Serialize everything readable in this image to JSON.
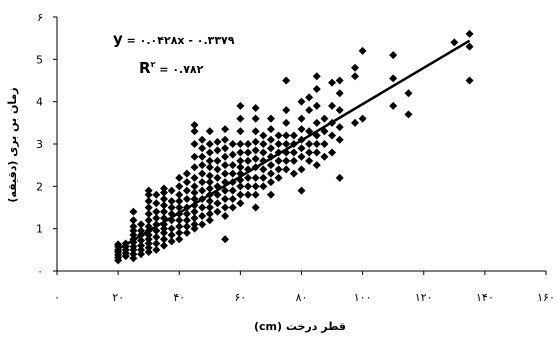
{
  "chart_data": {
    "type": "scatter",
    "title": "",
    "xlabel": "(cm) قطر درخت",
    "ylabel": "زمان بن بری (دقیقه)",
    "xlim": [
      0,
      160
    ],
    "ylim": [
      0,
      6
    ],
    "x_ticks": [
      0,
      20,
      40,
      60,
      80,
      100,
      120,
      140,
      160
    ],
    "y_ticks": [
      0,
      1,
      2,
      3,
      4,
      5,
      6
    ],
    "x_tick_labels": [
      "۰",
      "۲۰",
      "۴۰",
      "۶۰",
      "۸۰",
      "۱۰۰",
      "۱۲۰",
      "۱۴۰",
      "۱۶۰"
    ],
    "y_tick_labels": [
      "۰",
      "1",
      "2",
      "3",
      "4",
      "5",
      "۶"
    ],
    "grid": false,
    "marker": "diamond",
    "marker_color": "#000000",
    "trendline": {
      "slope": 0.0428,
      "intercept": -0.3379,
      "x_range": [
        20,
        135
      ],
      "equation_y": "y",
      "equation_text": " = ۰.۰۴۲۸x - ۰.۳۳۷۹",
      "r2_symbol": "R",
      "r2_sup": "۲",
      "r2_text": " = ۰.۷۸۲"
    },
    "series": [
      {
        "points": [
          [
            20,
            0.25
          ],
          [
            20,
            0.32
          ],
          [
            20,
            0.38
          ],
          [
            20,
            0.45
          ],
          [
            20,
            0.5
          ],
          [
            20,
            0.58
          ],
          [
            20,
            0.63
          ],
          [
            22.5,
            0.35
          ],
          [
            22.5,
            0.42
          ],
          [
            22.5,
            0.5
          ],
          [
            22.5,
            0.58
          ],
          [
            22.5,
            0.65
          ],
          [
            25,
            0.3
          ],
          [
            25,
            0.4
          ],
          [
            25,
            0.5
          ],
          [
            25,
            0.58
          ],
          [
            25,
            0.68
          ],
          [
            25,
            0.75
          ],
          [
            25,
            0.85
          ],
          [
            25,
            0.95
          ],
          [
            25,
            1.05
          ],
          [
            25,
            1.2
          ],
          [
            25,
            1.4
          ],
          [
            27.5,
            0.4
          ],
          [
            27.5,
            0.5
          ],
          [
            27.5,
            0.6
          ],
          [
            27.5,
            0.72
          ],
          [
            27.5,
            0.85
          ],
          [
            27.5,
            0.95
          ],
          [
            27.5,
            1.1
          ],
          [
            30,
            0.45
          ],
          [
            30,
            0.55
          ],
          [
            30,
            0.65
          ],
          [
            30,
            0.75
          ],
          [
            30,
            0.85
          ],
          [
            30,
            0.95
          ],
          [
            30,
            1.05
          ],
          [
            30,
            1.2
          ],
          [
            30,
            1.35
          ],
          [
            30,
            1.5
          ],
          [
            30,
            1.65
          ],
          [
            30,
            1.8
          ],
          [
            30,
            1.9
          ],
          [
            32.5,
            0.5
          ],
          [
            32.5,
            0.65
          ],
          [
            32.5,
            0.8
          ],
          [
            32.5,
            0.95
          ],
          [
            32.5,
            1.1
          ],
          [
            32.5,
            1.25
          ],
          [
            32.5,
            1.4
          ],
          [
            32.5,
            1.6
          ],
          [
            32.5,
            1.8
          ],
          [
            35,
            0.6
          ],
          [
            35,
            0.75
          ],
          [
            35,
            0.9
          ],
          [
            35,
            1.0
          ],
          [
            35,
            1.1
          ],
          [
            35,
            1.25
          ],
          [
            35,
            1.4
          ],
          [
            35,
            1.55
          ],
          [
            35,
            1.7
          ],
          [
            35,
            1.85
          ],
          [
            35,
            1.95
          ],
          [
            37.5,
            0.7
          ],
          [
            37.5,
            0.85
          ],
          [
            37.5,
            1.0
          ],
          [
            37.5,
            1.2
          ],
          [
            37.5,
            1.35
          ],
          [
            37.5,
            1.5
          ],
          [
            37.5,
            1.65
          ],
          [
            37.5,
            1.9
          ],
          [
            40,
            0.75
          ],
          [
            40,
            0.9
          ],
          [
            40,
            1.05
          ],
          [
            40,
            1.2
          ],
          [
            40,
            1.35
          ],
          [
            40,
            1.5
          ],
          [
            40,
            1.65
          ],
          [
            40,
            1.8
          ],
          [
            40,
            2.0
          ],
          [
            40,
            2.2
          ],
          [
            42.5,
            0.9
          ],
          [
            42.5,
            1.05
          ],
          [
            42.5,
            1.2
          ],
          [
            42.5,
            1.35
          ],
          [
            42.5,
            1.5
          ],
          [
            42.5,
            1.7
          ],
          [
            42.5,
            1.9
          ],
          [
            42.5,
            2.1
          ],
          [
            42.5,
            2.3
          ],
          [
            45,
            1.0
          ],
          [
            45,
            1.1
          ],
          [
            45,
            1.25
          ],
          [
            45,
            1.4
          ],
          [
            45,
            1.55
          ],
          [
            45,
            1.7
          ],
          [
            45,
            1.85
          ],
          [
            45,
            2.0
          ],
          [
            45,
            2.2
          ],
          [
            45,
            2.45
          ],
          [
            45,
            2.7
          ],
          [
            45,
            3.0
          ],
          [
            45,
            3.3
          ],
          [
            45,
            3.45
          ],
          [
            47.5,
            1.1
          ],
          [
            47.5,
            1.3
          ],
          [
            47.5,
            1.5
          ],
          [
            47.5,
            1.7
          ],
          [
            47.5,
            1.9
          ],
          [
            47.5,
            2.1
          ],
          [
            47.5,
            2.3
          ],
          [
            47.5,
            2.5
          ],
          [
            47.5,
            2.7
          ],
          [
            47.5,
            2.9
          ],
          [
            47.5,
            3.1
          ],
          [
            50,
            1.2
          ],
          [
            50,
            1.35
          ],
          [
            50,
            1.5
          ],
          [
            50,
            1.65
          ],
          [
            50,
            1.8
          ],
          [
            50,
            1.95
          ],
          [
            50,
            2.1
          ],
          [
            50,
            2.25
          ],
          [
            50,
            2.45
          ],
          [
            50,
            2.6
          ],
          [
            50,
            2.8
          ],
          [
            50,
            3.0
          ],
          [
            50,
            3.3
          ],
          [
            52.5,
            1.4
          ],
          [
            52.5,
            1.6
          ],
          [
            52.5,
            1.8
          ],
          [
            52.5,
            2.0
          ],
          [
            52.5,
            2.2
          ],
          [
            52.5,
            2.4
          ],
          [
            52.5,
            2.6
          ],
          [
            52.5,
            2.85
          ],
          [
            52.5,
            3.05
          ],
          [
            55,
            0.75
          ],
          [
            55,
            1.3
          ],
          [
            55,
            1.5
          ],
          [
            55,
            1.7
          ],
          [
            55,
            1.9
          ],
          [
            55,
            2.1
          ],
          [
            55,
            2.3
          ],
          [
            55,
            2.5
          ],
          [
            55,
            2.7
          ],
          [
            55,
            2.9
          ],
          [
            55,
            3.1
          ],
          [
            55,
            3.35
          ],
          [
            57.5,
            1.5
          ],
          [
            57.5,
            1.7
          ],
          [
            57.5,
            1.9
          ],
          [
            57.5,
            2.1
          ],
          [
            57.5,
            2.3
          ],
          [
            57.5,
            2.5
          ],
          [
            57.5,
            2.75
          ],
          [
            57.5,
            3.0
          ],
          [
            60,
            1.6
          ],
          [
            60,
            1.8
          ],
          [
            60,
            2.0
          ],
          [
            60,
            2.15
          ],
          [
            60,
            2.3
          ],
          [
            60,
            2.45
          ],
          [
            60,
            2.6
          ],
          [
            60,
            2.8
          ],
          [
            60,
            3.0
          ],
          [
            60,
            3.3
          ],
          [
            60,
            3.6
          ],
          [
            60,
            3.9
          ],
          [
            62.5,
            1.8
          ],
          [
            62.5,
            2.0
          ],
          [
            62.5,
            2.2
          ],
          [
            62.5,
            2.4
          ],
          [
            62.5,
            2.6
          ],
          [
            62.5,
            2.8
          ],
          [
            62.5,
            3.0
          ],
          [
            65,
            1.5
          ],
          [
            65,
            1.8
          ],
          [
            65,
            2.0
          ],
          [
            65,
            2.2
          ],
          [
            65,
            2.45
          ],
          [
            65,
            2.65
          ],
          [
            65,
            2.85
          ],
          [
            65,
            3.05
          ],
          [
            65,
            3.3
          ],
          [
            65,
            3.6
          ],
          [
            65,
            3.85
          ],
          [
            67.5,
            2.0
          ],
          [
            67.5,
            2.2
          ],
          [
            67.5,
            2.4
          ],
          [
            67.5,
            2.6
          ],
          [
            67.5,
            2.8
          ],
          [
            67.5,
            3.0
          ],
          [
            67.5,
            3.2
          ],
          [
            70,
            1.8
          ],
          [
            70,
            2.1
          ],
          [
            70,
            2.3
          ],
          [
            70,
            2.5
          ],
          [
            70,
            2.7
          ],
          [
            70,
            2.9
          ],
          [
            70,
            3.1
          ],
          [
            70,
            3.35
          ],
          [
            70,
            3.6
          ],
          [
            72.5,
            2.2
          ],
          [
            72.5,
            2.4
          ],
          [
            72.5,
            2.6
          ],
          [
            72.5,
            2.8
          ],
          [
            72.5,
            3.0
          ],
          [
            72.5,
            3.2
          ],
          [
            75,
            2.4
          ],
          [
            75,
            2.6
          ],
          [
            75,
            2.8
          ],
          [
            75,
            3.0
          ],
          [
            75,
            3.2
          ],
          [
            75,
            3.5
          ],
          [
            75,
            3.8
          ],
          [
            75,
            4.5
          ],
          [
            77.5,
            2.3
          ],
          [
            77.5,
            2.6
          ],
          [
            77.5,
            2.8
          ],
          [
            77.5,
            3.0
          ],
          [
            77.5,
            3.2
          ],
          [
            80,
            1.9
          ],
          [
            80,
            2.4
          ],
          [
            80,
            2.7
          ],
          [
            80,
            2.9
          ],
          [
            80,
            3.1
          ],
          [
            80,
            3.35
          ],
          [
            80,
            3.6
          ],
          [
            80,
            4.0
          ],
          [
            82.5,
            2.6
          ],
          [
            82.5,
            2.8
          ],
          [
            82.5,
            3.0
          ],
          [
            82.5,
            3.3
          ],
          [
            82.5,
            3.8
          ],
          [
            82.5,
            4.1
          ],
          [
            85,
            2.5
          ],
          [
            85,
            2.8
          ],
          [
            85,
            3.0
          ],
          [
            85,
            3.2
          ],
          [
            85,
            3.5
          ],
          [
            85,
            3.9
          ],
          [
            85,
            4.3
          ],
          [
            85,
            4.6
          ],
          [
            87.5,
            2.7
          ],
          [
            87.5,
            3.0
          ],
          [
            87.5,
            3.3
          ],
          [
            87.5,
            3.6
          ],
          [
            90,
            2.8
          ],
          [
            90,
            3.2
          ],
          [
            90,
            3.5
          ],
          [
            90,
            3.9
          ],
          [
            90,
            4.45
          ],
          [
            92.5,
            2.2
          ],
          [
            92.5,
            3.1
          ],
          [
            92.5,
            3.4
          ],
          [
            92.5,
            3.8
          ],
          [
            92.5,
            4.2
          ],
          [
            92.5,
            4.5
          ],
          [
            97.5,
            3.5
          ],
          [
            97.5,
            4.6
          ],
          [
            97.5,
            4.8
          ],
          [
            100,
            3.6
          ],
          [
            100,
            5.2
          ],
          [
            110,
            3.9
          ],
          [
            110,
            4.55
          ],
          [
            110,
            5.1
          ],
          [
            115,
            3.7
          ],
          [
            115,
            4.2
          ],
          [
            130,
            5.4
          ],
          [
            135,
            4.5
          ],
          [
            135,
            5.3
          ],
          [
            135,
            5.6
          ]
        ]
      }
    ]
  }
}
